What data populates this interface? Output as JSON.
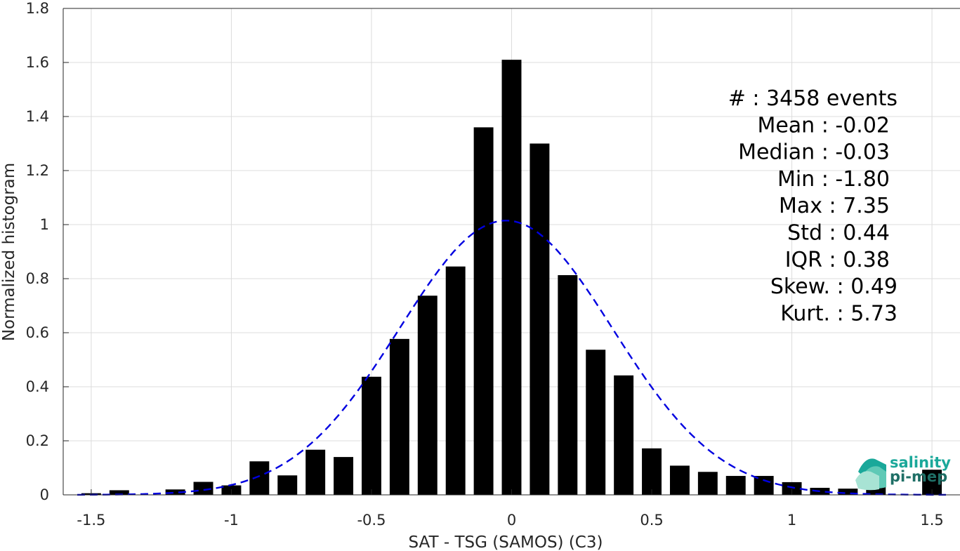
{
  "chart_data": {
    "type": "bar",
    "xlabel": "SAT - TSG (SAMOS) (C3)",
    "ylabel": "Normalized histogram",
    "xlim": [
      -1.6,
      1.6
    ],
    "ylim": [
      0,
      1.8
    ],
    "grid": true,
    "xticks": [
      -1.5,
      -1,
      -0.5,
      0,
      0.5,
      1,
      1.5
    ],
    "xtick_labels": [
      "-1.5",
      "-1",
      "-0.5",
      "0",
      "0.5",
      "1",
      "1.5"
    ],
    "yticks": [
      0,
      0.2,
      0.4,
      0.6,
      0.8,
      1,
      1.2,
      1.4,
      1.6,
      1.8
    ],
    "ytick_labels": [
      "0",
      "0.2",
      "0.4",
      "0.6",
      "0.8",
      "1",
      "1.2",
      "1.4",
      "1.6",
      "1.8"
    ],
    "bar_color": "#000000",
    "bar_width": 0.07,
    "bins": [
      -1.5,
      -1.4,
      -1.3,
      -1.2,
      -1.1,
      -1.0,
      -0.9,
      -0.8,
      -0.7,
      -0.6,
      -0.5,
      -0.4,
      -0.3,
      -0.2,
      -0.1,
      0.0,
      0.1,
      0.2,
      0.3,
      0.4,
      0.5,
      0.6,
      0.7,
      0.8,
      0.9,
      1.0,
      1.1,
      1.2,
      1.3,
      1.4,
      1.5
    ],
    "values": [
      0.006,
      0.017,
      0.0,
      0.02,
      0.048,
      0.035,
      0.124,
      0.072,
      0.167,
      0.14,
      0.437,
      0.577,
      0.737,
      0.845,
      1.36,
      1.61,
      1.3,
      0.813,
      0.537,
      0.442,
      0.172,
      0.108,
      0.085,
      0.07,
      0.07,
      0.047,
      0.026,
      0.023,
      0.03,
      0.0,
      0.093
    ],
    "fit": {
      "type": "gaussian",
      "style": "dashed",
      "color": "#0000e0",
      "mean": -0.02,
      "std": 0.38,
      "peak": 1.015
    },
    "annotations": [
      "#  : 3458 events",
      "Mean : -0.02",
      "Median : -0.03",
      "Min : -1.80",
      "Max : 7.35",
      "Std : 0.44",
      "IQR : 0.38",
      "Skew. : 0.49",
      "Kurt. : 5.73"
    ]
  },
  "logo": {
    "line1": "salinity",
    "line2": "pi-mep",
    "color1": "#1aa89a",
    "color2": "#1f6f66"
  }
}
